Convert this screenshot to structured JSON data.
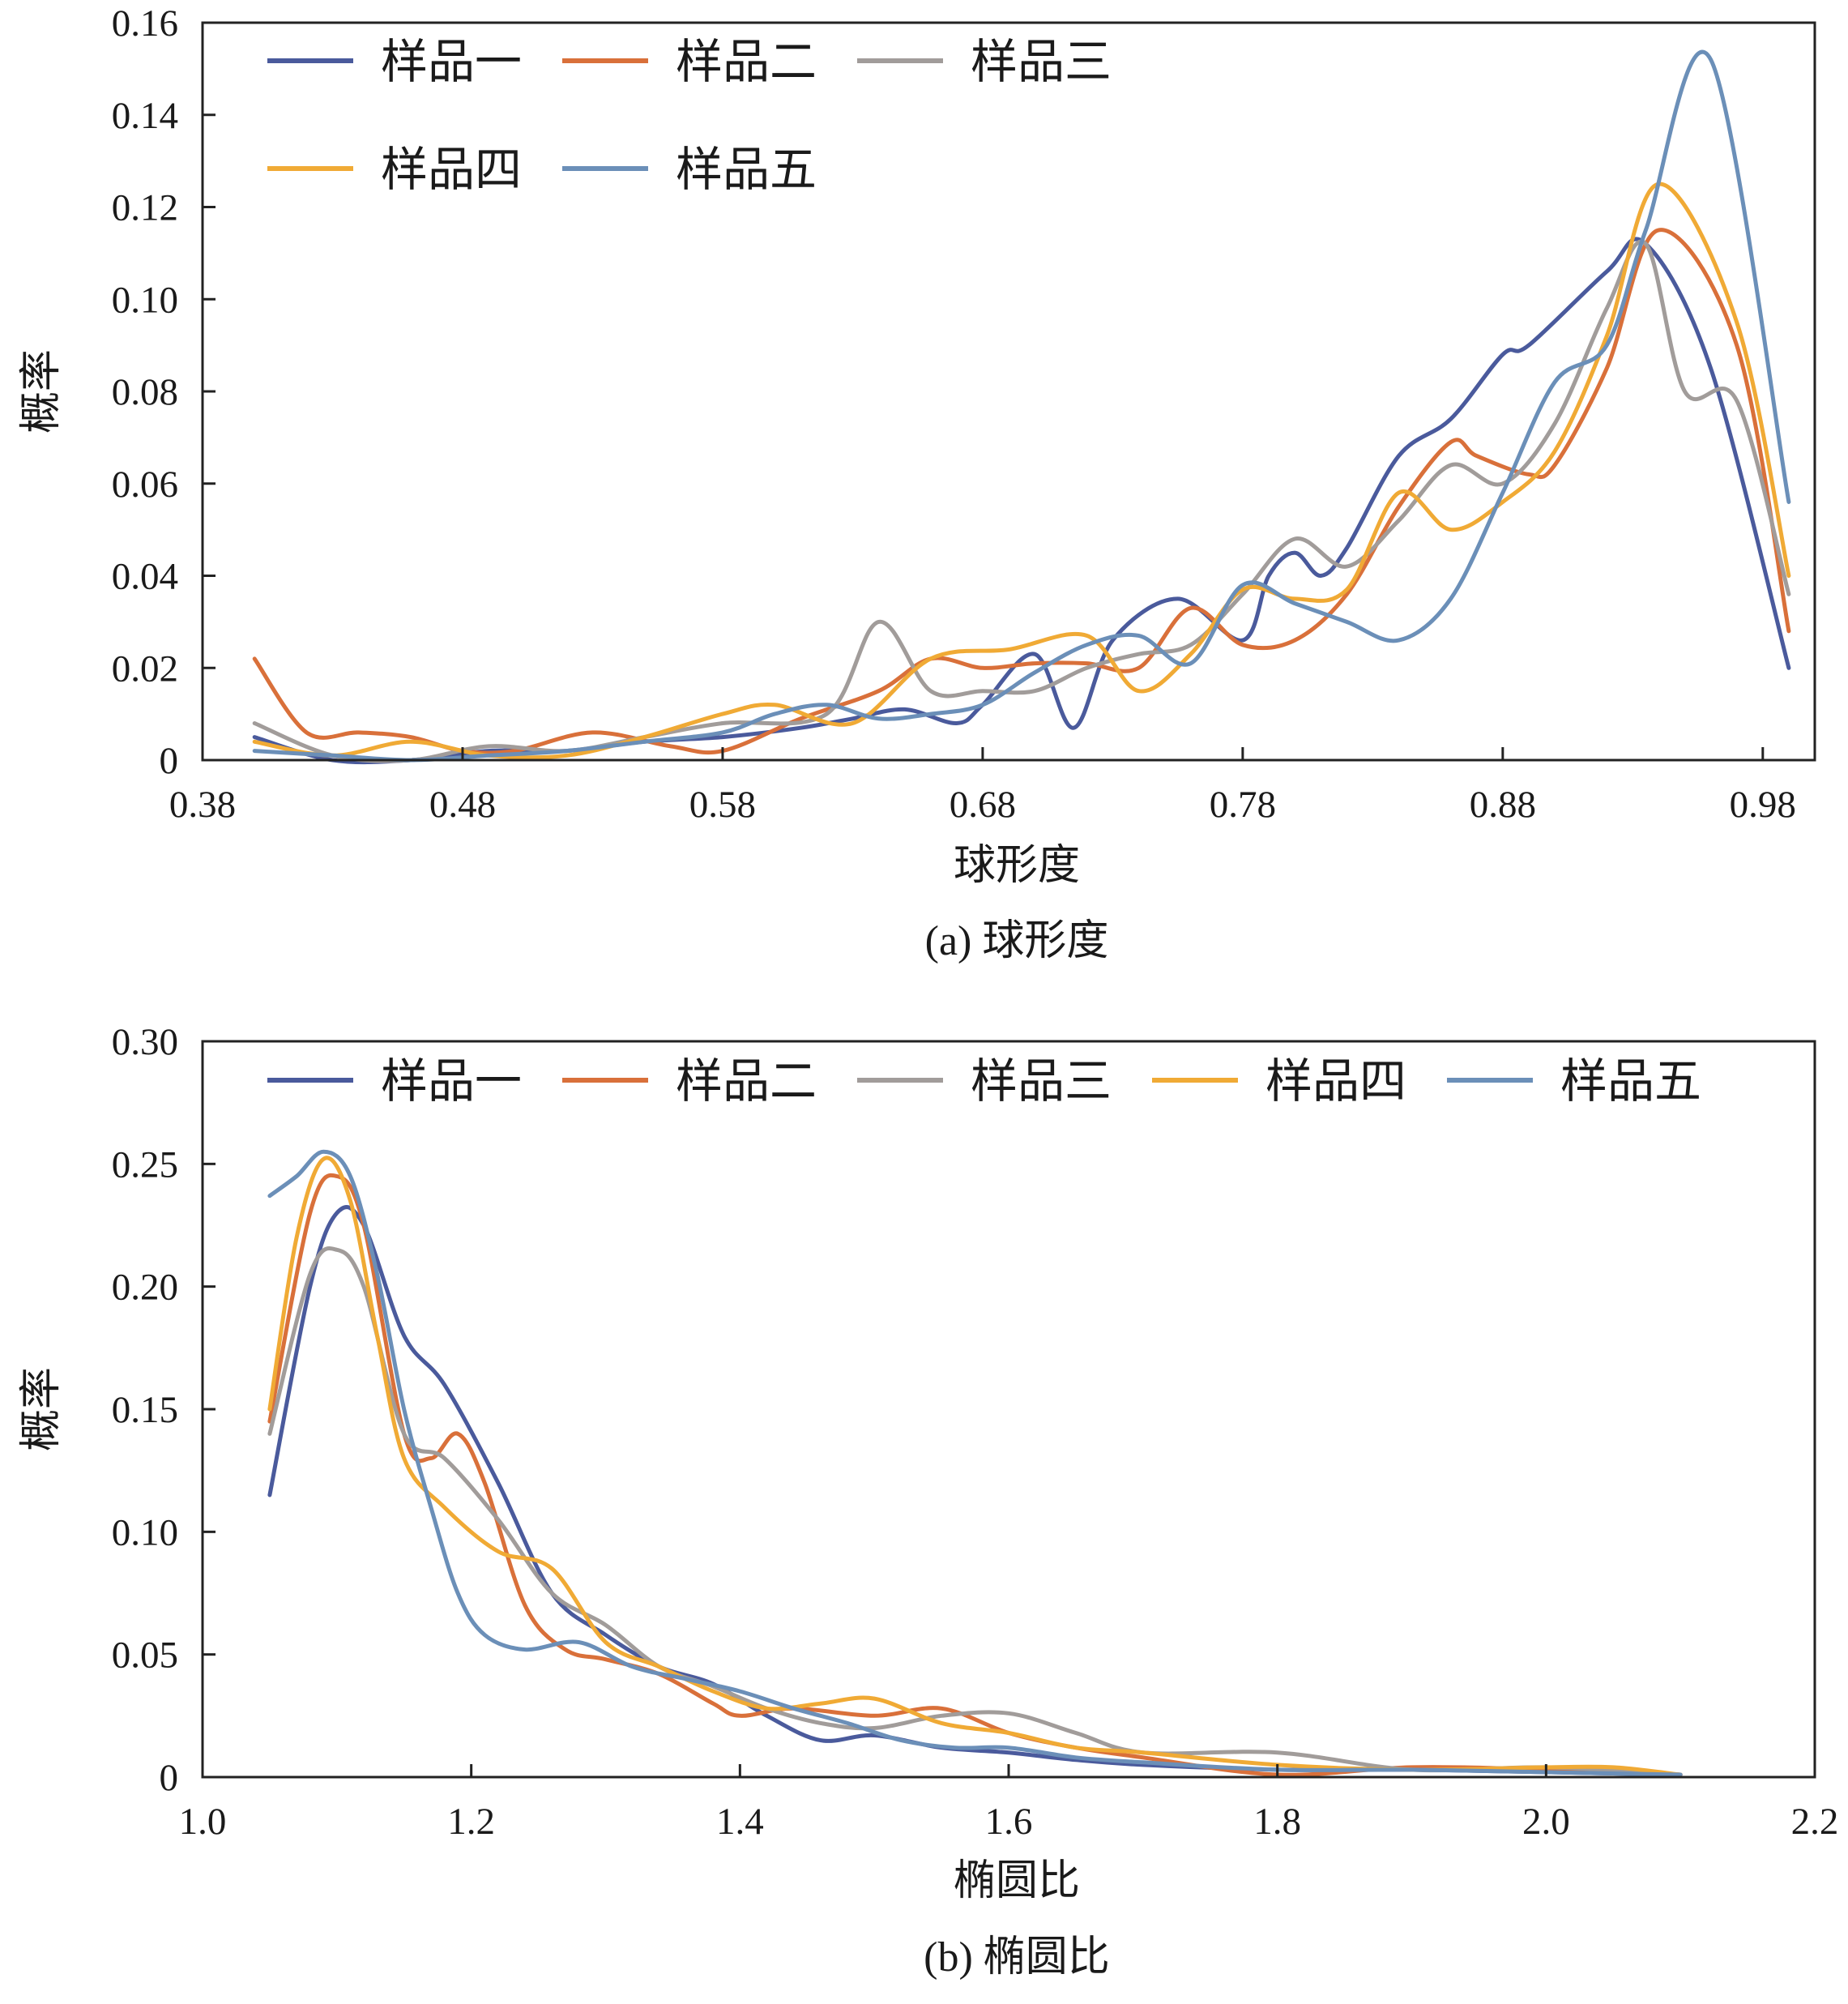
{
  "chart_data": [
    {
      "type": "line",
      "caption": "(a) 球形度",
      "xlabel": "球形度",
      "ylabel": "概率",
      "xlim": [
        0.38,
        1.0
      ],
      "ylim": [
        0,
        0.16
      ],
      "xticks": [
        0.38,
        0.48,
        0.58,
        0.68,
        0.78,
        0.88,
        0.98
      ],
      "xtick_labels": [
        "0.38",
        "0.48",
        "0.58",
        "0.68",
        "0.78",
        "0.88",
        "0.98"
      ],
      "yticks": [
        0,
        0.02,
        0.04,
        0.06,
        0.08,
        0.1,
        0.12,
        0.14,
        0.16
      ],
      "ytick_labels": [
        "0",
        "0.02",
        "0.04",
        "0.06",
        "0.08",
        "0.10",
        "0.12",
        "0.14",
        "0.16"
      ],
      "grid": false,
      "legend_position": "top-left",
      "legend_columns": 3,
      "series": [
        {
          "name": "样品一",
          "color": "#4a5a9c",
          "x": [
            0.4,
            0.43,
            0.46,
            0.49,
            0.52,
            0.55,
            0.58,
            0.61,
            0.63,
            0.65,
            0.67,
            0.68,
            0.7,
            0.715,
            0.73,
            0.755,
            0.78,
            0.79,
            0.8,
            0.81,
            0.82,
            0.84,
            0.86,
            0.88,
            0.89,
            0.92,
            0.935,
            0.96,
            0.99
          ],
          "y": [
            0.005,
            0.0,
            0.0,
            0.002,
            0.002,
            0.004,
            0.005,
            0.007,
            0.009,
            0.011,
            0.008,
            0.012,
            0.023,
            0.007,
            0.026,
            0.035,
            0.026,
            0.04,
            0.045,
            0.04,
            0.046,
            0.066,
            0.074,
            0.088,
            0.09,
            0.106,
            0.112,
            0.085,
            0.02
          ]
        },
        {
          "name": "样品二",
          "color": "#d9703a",
          "x": [
            0.4,
            0.42,
            0.44,
            0.46,
            0.48,
            0.5,
            0.53,
            0.56,
            0.58,
            0.61,
            0.64,
            0.66,
            0.68,
            0.7,
            0.72,
            0.74,
            0.76,
            0.78,
            0.8,
            0.82,
            0.84,
            0.86,
            0.87,
            0.89,
            0.9,
            0.92,
            0.94,
            0.97,
            0.99
          ],
          "y": [
            0.022,
            0.006,
            0.006,
            0.005,
            0.002,
            0.002,
            0.006,
            0.003,
            0.002,
            0.009,
            0.015,
            0.022,
            0.02,
            0.021,
            0.021,
            0.02,
            0.033,
            0.025,
            0.026,
            0.036,
            0.055,
            0.069,
            0.066,
            0.062,
            0.064,
            0.085,
            0.115,
            0.09,
            0.028
          ]
        },
        {
          "name": "样品三",
          "color": "#a19c9a",
          "x": [
            0.4,
            0.43,
            0.46,
            0.49,
            0.52,
            0.55,
            0.58,
            0.62,
            0.64,
            0.66,
            0.68,
            0.7,
            0.72,
            0.74,
            0.76,
            0.78,
            0.8,
            0.82,
            0.84,
            0.86,
            0.88,
            0.9,
            0.92,
            0.935,
            0.95,
            0.97,
            0.99
          ],
          "y": [
            0.008,
            0.001,
            0.0,
            0.003,
            0.002,
            0.005,
            0.008,
            0.01,
            0.03,
            0.015,
            0.015,
            0.015,
            0.02,
            0.023,
            0.025,
            0.036,
            0.048,
            0.042,
            0.052,
            0.064,
            0.06,
            0.073,
            0.098,
            0.112,
            0.08,
            0.078,
            0.036
          ]
        },
        {
          "name": "样品四",
          "color": "#f0aa35",
          "x": [
            0.4,
            0.43,
            0.46,
            0.49,
            0.52,
            0.55,
            0.58,
            0.6,
            0.63,
            0.66,
            0.69,
            0.72,
            0.74,
            0.76,
            0.78,
            0.8,
            0.82,
            0.84,
            0.86,
            0.88,
            0.9,
            0.92,
            0.94,
            0.97,
            0.99
          ],
          "y": [
            0.004,
            0.001,
            0.004,
            0.001,
            0.001,
            0.005,
            0.01,
            0.012,
            0.008,
            0.022,
            0.024,
            0.027,
            0.015,
            0.023,
            0.037,
            0.035,
            0.037,
            0.058,
            0.05,
            0.056,
            0.067,
            0.092,
            0.125,
            0.095,
            0.04
          ]
        },
        {
          "name": "样品五",
          "color": "#6b8fb8",
          "x": [
            0.4,
            0.43,
            0.46,
            0.49,
            0.52,
            0.55,
            0.58,
            0.6,
            0.62,
            0.64,
            0.66,
            0.68,
            0.7,
            0.72,
            0.74,
            0.76,
            0.78,
            0.8,
            0.82,
            0.84,
            0.86,
            0.88,
            0.9,
            0.92,
            0.935,
            0.96,
            0.99
          ],
          "y": [
            0.002,
            0.001,
            0.0,
            0.001,
            0.002,
            0.004,
            0.006,
            0.01,
            0.012,
            0.009,
            0.01,
            0.012,
            0.019,
            0.025,
            0.027,
            0.021,
            0.038,
            0.034,
            0.03,
            0.026,
            0.035,
            0.058,
            0.082,
            0.09,
            0.115,
            0.152,
            0.056
          ]
        }
      ]
    },
    {
      "type": "line",
      "caption": "(b) 椭圆比",
      "xlabel": "椭圆比",
      "ylabel": "概率",
      "xlim": [
        1.0,
        2.2
      ],
      "ylim": [
        0,
        0.3
      ],
      "xticks": [
        1.0,
        1.2,
        1.4,
        1.6,
        1.8,
        2.0,
        2.2
      ],
      "xtick_labels": [
        "1.0",
        "1.2",
        "1.4",
        "1.6",
        "1.8",
        "2.0",
        "2.2"
      ],
      "yticks": [
        0,
        0.05,
        0.1,
        0.15,
        0.2,
        0.25,
        0.3
      ],
      "ytick_labels": [
        "0",
        "0.05",
        "0.10",
        "0.15",
        "0.20",
        "0.25",
        "0.30"
      ],
      "grid": false,
      "legend_position": "top",
      "legend_columns": 5,
      "series": [
        {
          "name": "样品一",
          "color": "#4a5a9c",
          "x": [
            1.05,
            1.08,
            1.1,
            1.12,
            1.15,
            1.18,
            1.22,
            1.26,
            1.3,
            1.34,
            1.38,
            1.42,
            1.46,
            1.5,
            1.55,
            1.6,
            1.65,
            1.7,
            1.8,
            1.9,
            2.0,
            2.1
          ],
          "y": [
            0.115,
            0.2,
            0.23,
            0.225,
            0.18,
            0.16,
            0.12,
            0.075,
            0.058,
            0.045,
            0.038,
            0.025,
            0.015,
            0.017,
            0.012,
            0.01,
            0.007,
            0.005,
            0.003,
            0.003,
            0.002,
            0.001
          ]
        },
        {
          "name": "样品二",
          "color": "#d9703a",
          "x": [
            1.05,
            1.08,
            1.1,
            1.12,
            1.15,
            1.17,
            1.19,
            1.21,
            1.24,
            1.27,
            1.3,
            1.34,
            1.38,
            1.4,
            1.44,
            1.5,
            1.55,
            1.6,
            1.65,
            1.7,
            1.8,
            1.9,
            2.0,
            2.1
          ],
          "y": [
            0.145,
            0.23,
            0.245,
            0.225,
            0.14,
            0.13,
            0.14,
            0.12,
            0.07,
            0.052,
            0.048,
            0.042,
            0.03,
            0.025,
            0.028,
            0.025,
            0.028,
            0.018,
            0.012,
            0.008,
            0.001,
            0.004,
            0.003,
            0.001
          ]
        },
        {
          "name": "样品三",
          "color": "#a19c9a",
          "x": [
            1.05,
            1.08,
            1.1,
            1.12,
            1.15,
            1.18,
            1.22,
            1.26,
            1.3,
            1.34,
            1.38,
            1.42,
            1.46,
            1.5,
            1.55,
            1.6,
            1.65,
            1.7,
            1.8,
            1.9,
            2.0,
            2.1
          ],
          "y": [
            0.14,
            0.205,
            0.215,
            0.2,
            0.14,
            0.13,
            0.105,
            0.075,
            0.062,
            0.045,
            0.037,
            0.028,
            0.022,
            0.02,
            0.025,
            0.026,
            0.018,
            0.01,
            0.01,
            0.003,
            0.004,
            0.001
          ]
        },
        {
          "name": "样品四",
          "color": "#f0aa35",
          "x": [
            1.05,
            1.07,
            1.09,
            1.11,
            1.13,
            1.15,
            1.18,
            1.22,
            1.26,
            1.3,
            1.34,
            1.38,
            1.42,
            1.46,
            1.5,
            1.55,
            1.6,
            1.65,
            1.7,
            1.8,
            1.9,
            2.0,
            2.05,
            2.1
          ],
          "y": [
            0.15,
            0.22,
            0.252,
            0.235,
            0.18,
            0.13,
            0.11,
            0.092,
            0.085,
            0.055,
            0.045,
            0.035,
            0.028,
            0.03,
            0.032,
            0.022,
            0.018,
            0.012,
            0.01,
            0.005,
            0.003,
            0.004,
            0.004,
            0.001
          ]
        },
        {
          "name": "样品五",
          "color": "#6b8fb8",
          "x": [
            1.05,
            1.07,
            1.09,
            1.11,
            1.13,
            1.15,
            1.17,
            1.19,
            1.21,
            1.24,
            1.28,
            1.32,
            1.36,
            1.4,
            1.44,
            1.48,
            1.52,
            1.56,
            1.6,
            1.65,
            1.7,
            1.8,
            1.9,
            2.0,
            2.1
          ],
          "y": [
            0.237,
            0.245,
            0.255,
            0.245,
            0.205,
            0.15,
            0.11,
            0.075,
            0.058,
            0.052,
            0.055,
            0.045,
            0.04,
            0.035,
            0.028,
            0.022,
            0.015,
            0.012,
            0.012,
            0.008,
            0.006,
            0.003,
            0.003,
            0.002,
            0.001
          ]
        }
      ]
    }
  ]
}
